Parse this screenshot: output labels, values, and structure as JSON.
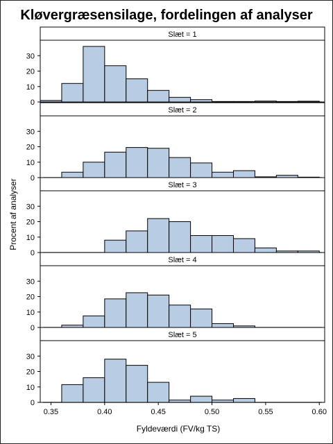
{
  "chart_data": {
    "type": "bar",
    "title": "Kløvergræsensilage, fordelingen af analyser",
    "xlabel": "Fyldeværdi (FV/kg TS)",
    "ylabel": "Procent af analyser",
    "xlim": [
      0.34,
      0.605
    ],
    "ylim": [
      0,
      40
    ],
    "bin_width": 0.02,
    "x_ticks": [
      "0.35",
      "0.40",
      "0.45",
      "0.50",
      "0.55",
      "0.60"
    ],
    "y_ticks": [
      "0",
      "10",
      "20",
      "30"
    ],
    "bar_color": "#b8cce4",
    "panels": [
      {
        "strip": "Slæt = 1",
        "bins": [
          {
            "x0": 0.34,
            "value": 1
          },
          {
            "x0": 0.36,
            "value": 12
          },
          {
            "x0": 0.38,
            "value": 36
          },
          {
            "x0": 0.4,
            "value": 23.5
          },
          {
            "x0": 0.42,
            "value": 15
          },
          {
            "x0": 0.44,
            "value": 7.5
          },
          {
            "x0": 0.46,
            "value": 3
          },
          {
            "x0": 0.48,
            "value": 1.5
          },
          {
            "x0": 0.5,
            "value": 0.3
          },
          {
            "x0": 0.52,
            "value": 0.3
          },
          {
            "x0": 0.54,
            "value": 0.6
          },
          {
            "x0": 0.56,
            "value": 0.3
          },
          {
            "x0": 0.58,
            "value": 0.5
          }
        ]
      },
      {
        "strip": "Slæt = 2",
        "bins": [
          {
            "x0": 0.36,
            "value": 3.5
          },
          {
            "x0": 0.38,
            "value": 10
          },
          {
            "x0": 0.4,
            "value": 16.5
          },
          {
            "x0": 0.42,
            "value": 19.5
          },
          {
            "x0": 0.44,
            "value": 19
          },
          {
            "x0": 0.46,
            "value": 13
          },
          {
            "x0": 0.48,
            "value": 9.5
          },
          {
            "x0": 0.5,
            "value": 3.5
          },
          {
            "x0": 0.52,
            "value": 4.5
          },
          {
            "x0": 0.54,
            "value": 0.5
          },
          {
            "x0": 0.56,
            "value": 1.5
          },
          {
            "x0": 0.58,
            "value": 0.3
          }
        ]
      },
      {
        "strip": "Slæt = 3",
        "bins": [
          {
            "x0": 0.4,
            "value": 8
          },
          {
            "x0": 0.42,
            "value": 14
          },
          {
            "x0": 0.44,
            "value": 22
          },
          {
            "x0": 0.46,
            "value": 20
          },
          {
            "x0": 0.48,
            "value": 11
          },
          {
            "x0": 0.5,
            "value": 11
          },
          {
            "x0": 0.52,
            "value": 9
          },
          {
            "x0": 0.54,
            "value": 3
          },
          {
            "x0": 0.56,
            "value": 1
          },
          {
            "x0": 0.58,
            "value": 1
          }
        ]
      },
      {
        "strip": "Slæt = 4",
        "bins": [
          {
            "x0": 0.36,
            "value": 1.5
          },
          {
            "x0": 0.38,
            "value": 7.5
          },
          {
            "x0": 0.4,
            "value": 18.5
          },
          {
            "x0": 0.42,
            "value": 22.5
          },
          {
            "x0": 0.44,
            "value": 21
          },
          {
            "x0": 0.46,
            "value": 14.5
          },
          {
            "x0": 0.48,
            "value": 12
          },
          {
            "x0": 0.5,
            "value": 2.5
          },
          {
            "x0": 0.52,
            "value": 1
          }
        ]
      },
      {
        "strip": "Slæt = 5",
        "bins": [
          {
            "x0": 0.36,
            "value": 11.5
          },
          {
            "x0": 0.38,
            "value": 16
          },
          {
            "x0": 0.4,
            "value": 28
          },
          {
            "x0": 0.42,
            "value": 24
          },
          {
            "x0": 0.44,
            "value": 13
          },
          {
            "x0": 0.46,
            "value": 1.5
          },
          {
            "x0": 0.48,
            "value": 4
          },
          {
            "x0": 0.5,
            "value": 1.5
          },
          {
            "x0": 0.52,
            "value": 2.5
          }
        ]
      }
    ]
  }
}
